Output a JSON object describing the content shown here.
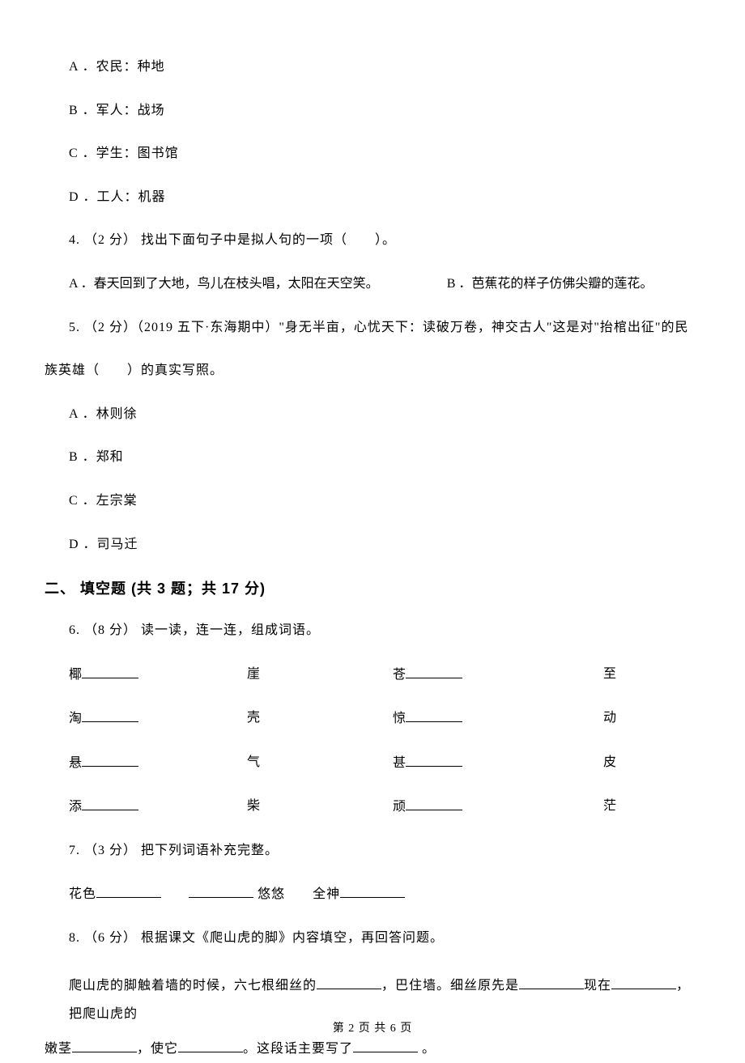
{
  "q3": {
    "options": {
      "A": "A ．农民：种地",
      "B": "B ．军人：战场",
      "C": "C ．学生：图书馆",
      "D": "D ．工人：机器"
    }
  },
  "q4": {
    "stem": "4. （2 分） 找出下面句子中是拟人句的一项（　　）。",
    "optA": "A ．春天回到了大地，鸟儿在枝头唱，太阳在天空笑。",
    "optB": "B ．芭蕉花的样子仿佛尖瓣的莲花。"
  },
  "q5": {
    "stem_part1": "5. （2 分）（2019 五下·东海期中）\"身无半亩，心忧天下：读破万卷，神交古人\"这是对\"抬棺出征\"的民",
    "stem_part2": "族英雄（　　）的真实写照。",
    "options": {
      "A": "A ．林则徐",
      "B": "B ．郑和",
      "C": "C ．左宗棠",
      "D": "D ．司马迁"
    }
  },
  "section2": {
    "heading": "二、 填空题 (共 3 题；共 17 分)"
  },
  "q6": {
    "stem": "6. （8 分） 读一读，连一连，组成词语。",
    "rows": [
      {
        "c1": "椰",
        "c2": "崖",
        "c3": "苍",
        "c4": "至"
      },
      {
        "c1": "淘",
        "c2": "壳",
        "c3": "惊",
        "c4": "动"
      },
      {
        "c1": "悬",
        "c2": "气",
        "c3": "甚",
        "c4": "皮"
      },
      {
        "c1": "添",
        "c2": "柴",
        "c3": "顽",
        "c4": "茫"
      }
    ]
  },
  "q7": {
    "stem": "7. （3 分） 把下列词语补充完整。",
    "part1": "花色",
    "part2": "悠悠",
    "part3": "全神"
  },
  "q8": {
    "stem": "8. （6 分） 根据课文《爬山虎的脚》内容填空，再回答问题。",
    "passage_l1_p1": "爬山虎的脚触着墙的时候，六七根细丝的",
    "passage_l1_p2": "，巴住墙。细丝原先是",
    "passage_l1_p3": "现在",
    "passage_l1_p4": "，把爬山虎的",
    "passage_l2_p1": "嫩茎",
    "passage_l2_p2": "，使它",
    "passage_l2_p3": "。这段话主要写了",
    "passage_l2_p4": "。"
  },
  "footer": "第 2 页 共 6 页"
}
